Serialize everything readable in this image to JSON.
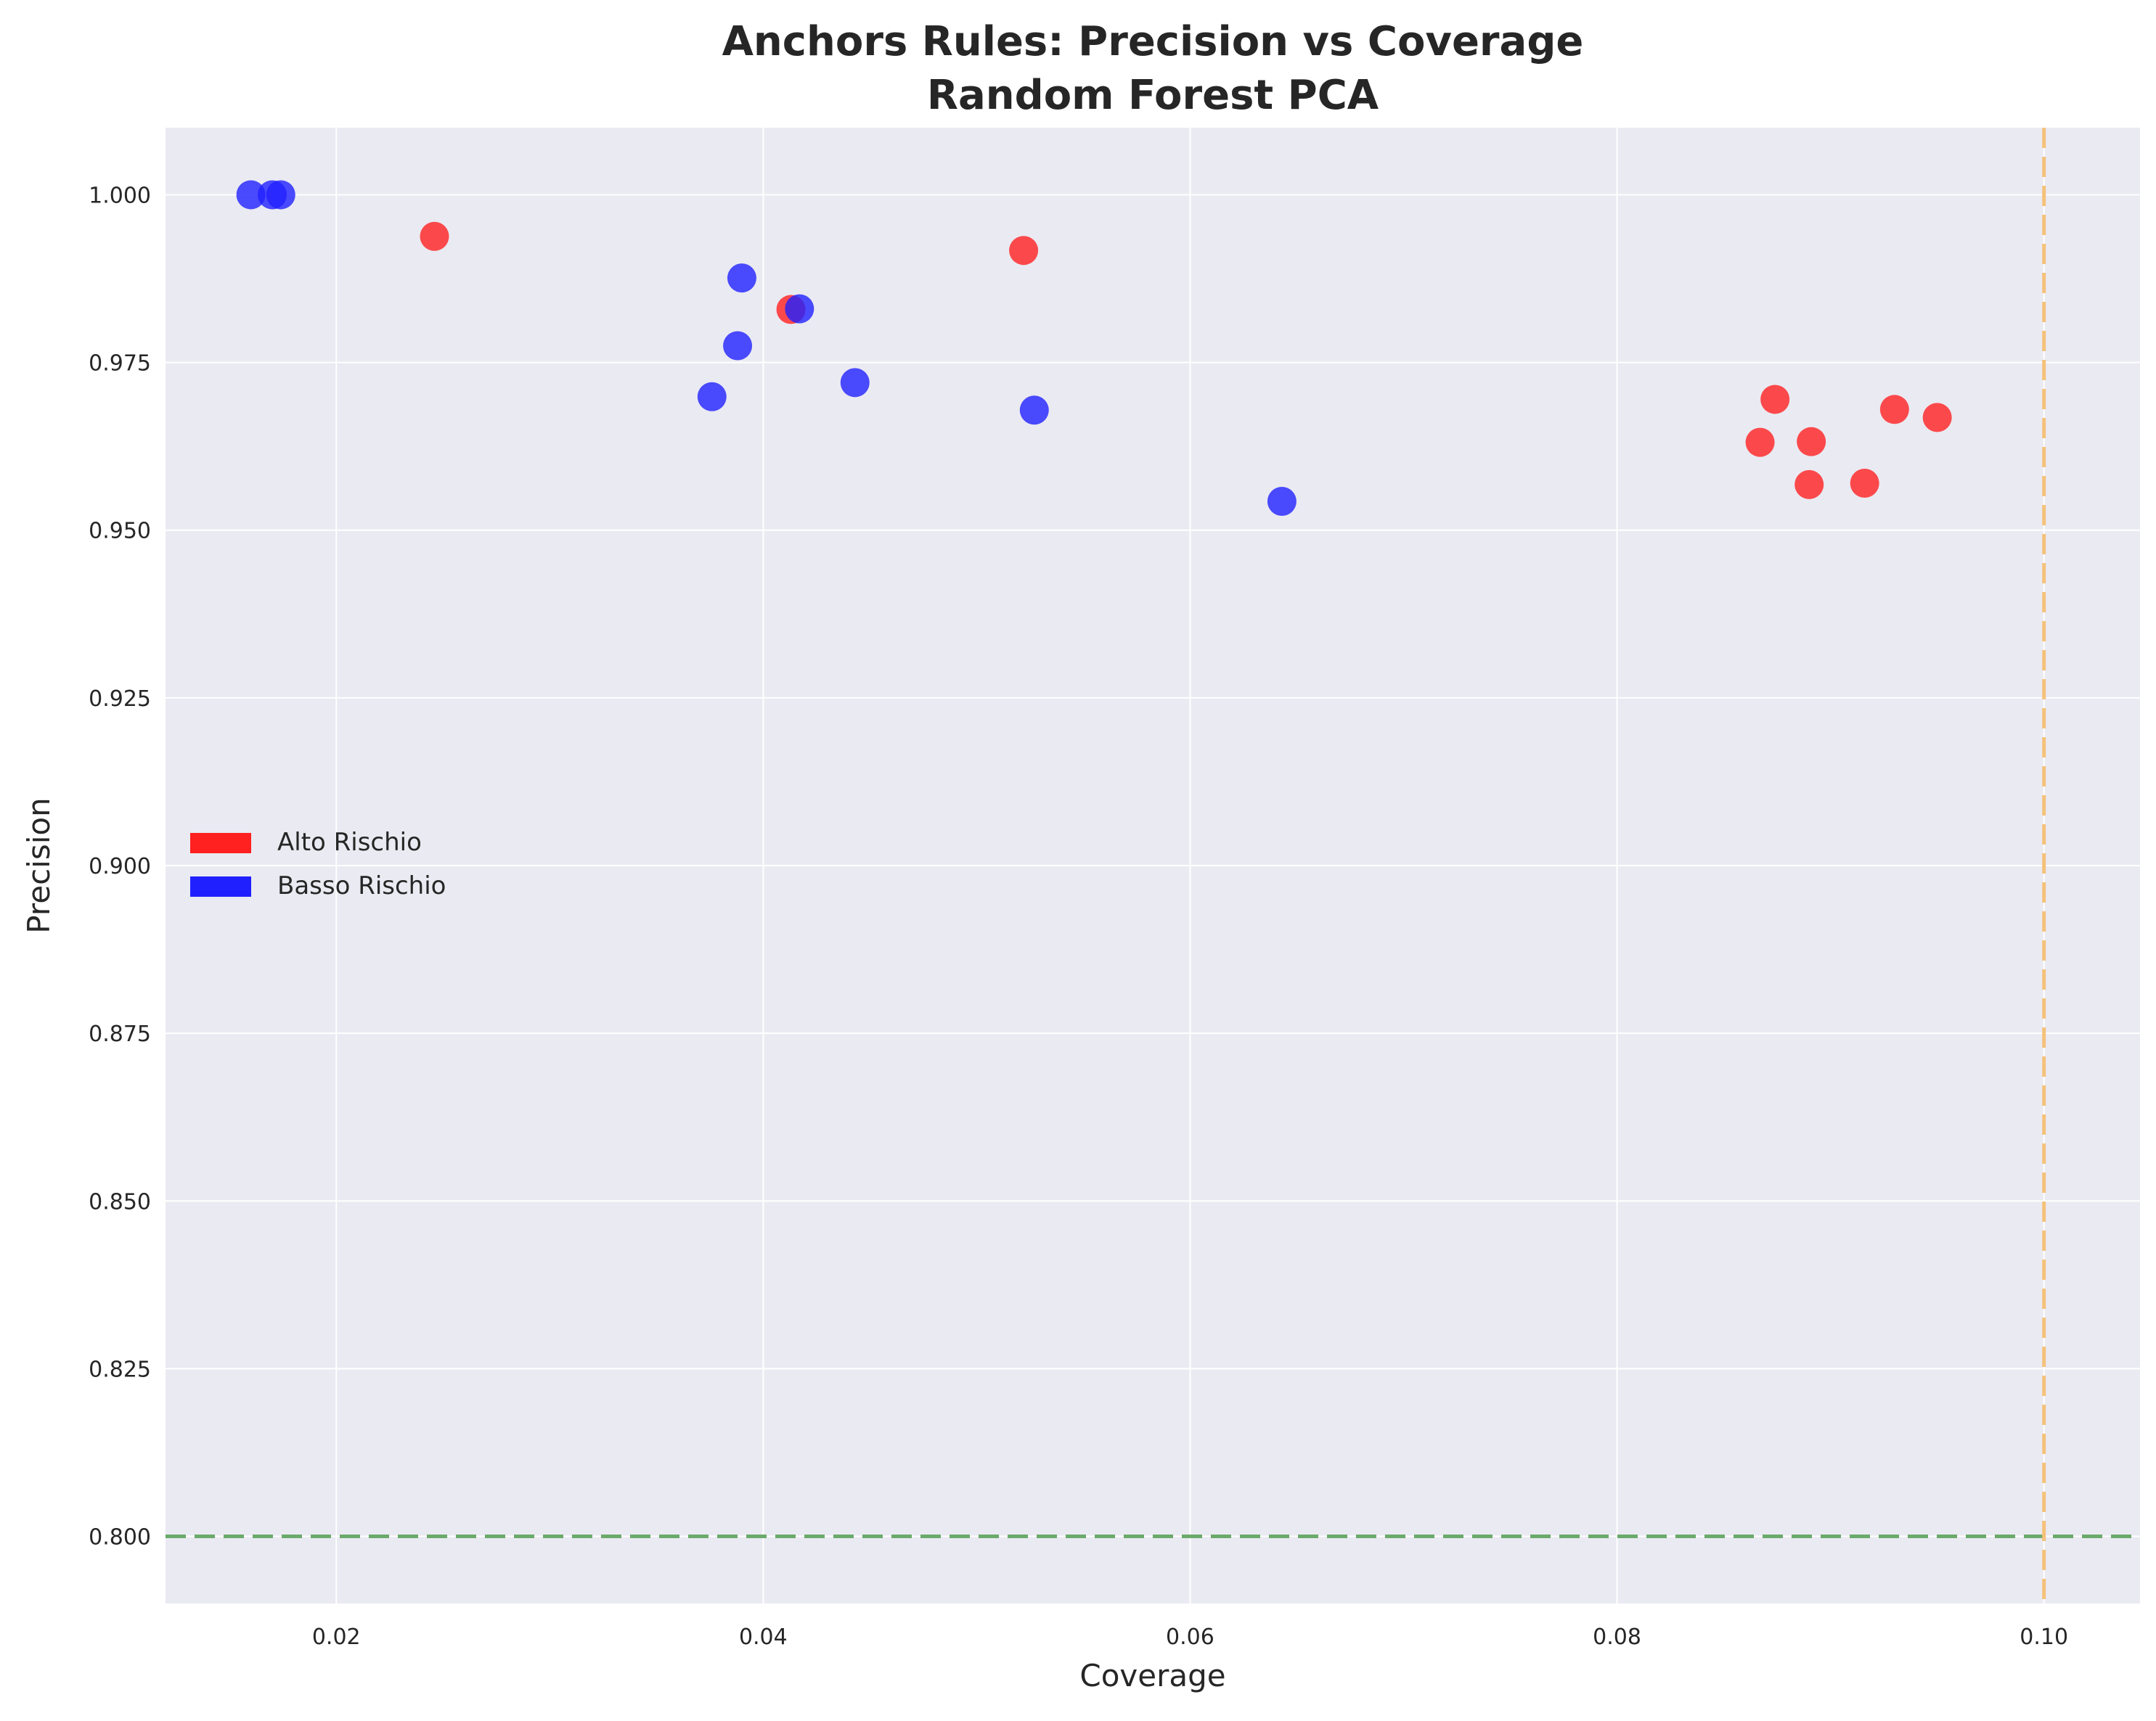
{
  "chart_data": {
    "type": "scatter",
    "title": "Anchors Rules: Precision vs Coverage",
    "subtitle": "Random Forest PCA",
    "xlabel": "Coverage",
    "ylabel": "Precision",
    "xlim": [
      0.012,
      0.1045
    ],
    "ylim": [
      0.79,
      1.01
    ],
    "x_ticks": [
      "0.02",
      "0.04",
      "0.06",
      "0.08",
      "0.10"
    ],
    "y_ticks": [
      "0.800",
      "0.825",
      "0.850",
      "0.875",
      "0.900",
      "0.925",
      "0.950",
      "0.975",
      "1.000"
    ],
    "grid": true,
    "background": "#eaeaf2",
    "legend_position": "center-left",
    "reference_lines": [
      {
        "orientation": "horizontal",
        "value": 0.8,
        "color": "#6aaa6a",
        "style": "dashed"
      },
      {
        "orientation": "vertical",
        "value": 0.1,
        "color": "#f5c27a",
        "style": "dashed"
      }
    ],
    "series": [
      {
        "name": "Alto Rischio",
        "color": "#ff2020",
        "points": [
          {
            "x": 0.0246,
            "y": 0.9938
          },
          {
            "x": 0.0413,
            "y": 0.9829
          },
          {
            "x": 0.0522,
            "y": 0.9917
          },
          {
            "x": 0.0867,
            "y": 0.9631
          },
          {
            "x": 0.0874,
            "y": 0.9695
          },
          {
            "x": 0.089,
            "y": 0.9568
          },
          {
            "x": 0.0891,
            "y": 0.9632
          },
          {
            "x": 0.0916,
            "y": 0.957
          },
          {
            "x": 0.093,
            "y": 0.968
          },
          {
            "x": 0.095,
            "y": 0.9668
          }
        ]
      },
      {
        "name": "Basso Rischio",
        "color": "#2020ff",
        "points": [
          {
            "x": 0.016,
            "y": 1.0
          },
          {
            "x": 0.017,
            "y": 1.0
          },
          {
            "x": 0.0174,
            "y": 1.0
          },
          {
            "x": 0.0376,
            "y": 0.9699
          },
          {
            "x": 0.0388,
            "y": 0.9775
          },
          {
            "x": 0.039,
            "y": 0.9876
          },
          {
            "x": 0.0417,
            "y": 0.983
          },
          {
            "x": 0.0443,
            "y": 0.972
          },
          {
            "x": 0.0527,
            "y": 0.9679
          },
          {
            "x": 0.0643,
            "y": 0.9543
          }
        ]
      }
    ]
  }
}
